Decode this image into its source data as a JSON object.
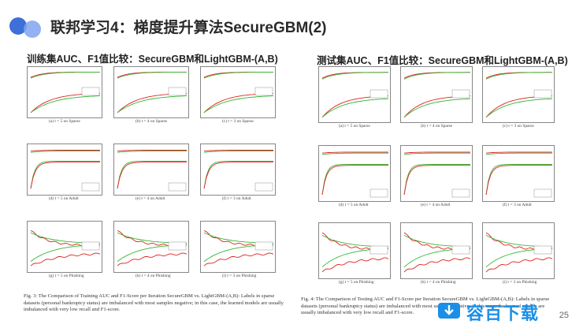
{
  "title": "联邦学习4：梯度提升算法SecureGBM(2)",
  "left_subtitle": "训练集AUC、F1值比较：SecureGBM和LightGBM-(A,B)",
  "right_subtitle": "测试集AUC、F1值比较：SecureGBM和LightGBM-(A,B)",
  "left_panel": {
    "captions": [
      "(a) t = 5 on Sparse",
      "(b) t = 4 on Sparse",
      "(c) t = 3 on Sparse",
      "(d) t = 5 on Adult",
      "(e) t = 4 on Adult",
      "(f) t = 3 on Adult",
      "(g) t = 5 on Phishing",
      "(h) t = 4 on Phishing",
      "(i) t = 3 on Phishing"
    ],
    "figure_caption": "Fig. 3: The Comparison of Training AUC and F1-Score per Iteration SecureGBM vs. LightGBM-(A,B): Labels in sparse datasets (personal bankruptcy status) are imbalanced with most samples negative; in this case, the learned models are usually imbalanced with very low recall and F1-score."
  },
  "right_panel": {
    "captions": [
      "(a) t = 5 on Sparse",
      "(b) t = 4 on Sparse",
      "(c) t = 3 on Sparse",
      "(d) t = 5 on Adult",
      "(e) t = 4 on Adult",
      "(f) t = 3 on Adult",
      "(g) t = 5 on Phishing",
      "(h) t = 4 on Phishing",
      "(i) t = 3 on Phishing"
    ],
    "figure_caption": "Fig. 4: The Comparison of Testing AUC and F1-Score per Iteration SecureGBM vs. LightGBM-(A,B): Labels in sparse datasets (personal bankruptcy status) are imbalanced with most samples negative; in this case, the learned models are usually imbalanced with very low recall and F1-score."
  },
  "page_number": "25",
  "watermark": "容百下载",
  "colors": {
    "series_red": "#e02020",
    "series_green": "#33b833",
    "accent_blue": "#3f6fd8"
  }
}
